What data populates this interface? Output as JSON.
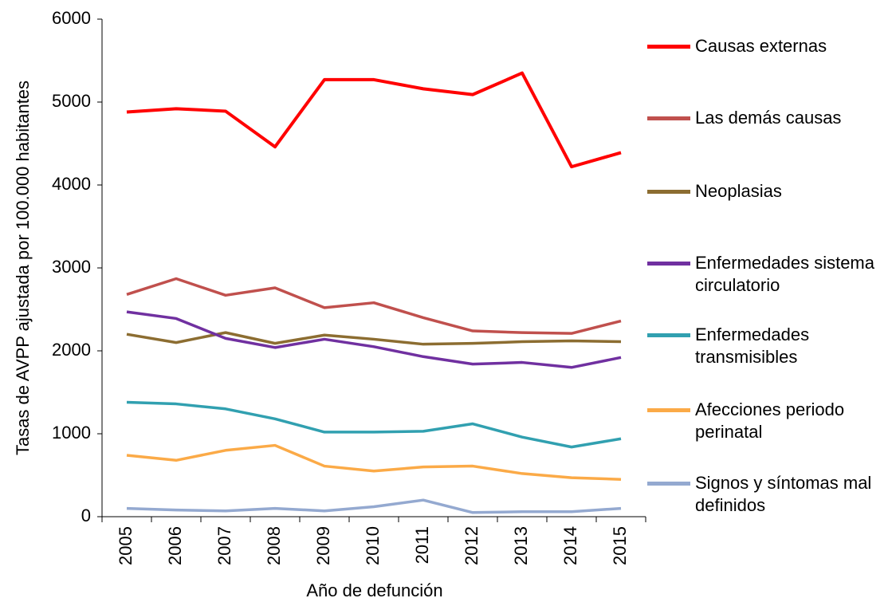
{
  "chart_data": {
    "type": "line",
    "x_label": "Año de defunción",
    "y_label": "Tasas de AVPP ajustada por 100.000 habitantes",
    "categories": [
      "2005",
      "2006",
      "2007",
      "2008",
      "2009",
      "2010",
      "2011",
      "2012",
      "2013",
      "2014",
      "2015"
    ],
    "series": [
      {
        "name": "Causas externas",
        "color": "#ff0000",
        "values": [
          4880,
          4920,
          4890,
          4460,
          5270,
          5270,
          5160,
          5090,
          5350,
          4220,
          4390
        ]
      },
      {
        "name": "Las demás causas",
        "color": "#c0504d",
        "values": [
          2680,
          2870,
          2670,
          2760,
          2520,
          2580,
          2400,
          2240,
          2220,
          2210,
          2360
        ]
      },
      {
        "name": "Neoplasias",
        "color": "#8c6d31",
        "values": [
          2200,
          2100,
          2220,
          2090,
          2190,
          2140,
          2080,
          2090,
          2110,
          2120,
          2110
        ]
      },
      {
        "name": "Enfermedades sistema circulatorio",
        "color": "#7030a0",
        "values": [
          2470,
          2390,
          2150,
          2040,
          2140,
          2050,
          1930,
          1840,
          1860,
          1800,
          1920
        ]
      },
      {
        "name": "Enfermedades transmisibles",
        "color": "#31a0b0",
        "values": [
          1380,
          1360,
          1300,
          1180,
          1020,
          1020,
          1030,
          1120,
          960,
          840,
          940
        ]
      },
      {
        "name": "Afecciones periodo perinatal",
        "color": "#fbaa47",
        "values": [
          740,
          680,
          800,
          860,
          610,
          550,
          600,
          610,
          520,
          470,
          450
        ]
      },
      {
        "name": "Signos y síntomas mal definidos",
        "color": "#94a9d0",
        "values": [
          100,
          80,
          70,
          100,
          70,
          120,
          200,
          50,
          60,
          60,
          100
        ]
      }
    ],
    "ylim": [
      0,
      6000
    ],
    "yticks": [
      0,
      1000,
      2000,
      3000,
      4000,
      5000,
      6000
    ],
    "grid": false,
    "legend": "right"
  }
}
